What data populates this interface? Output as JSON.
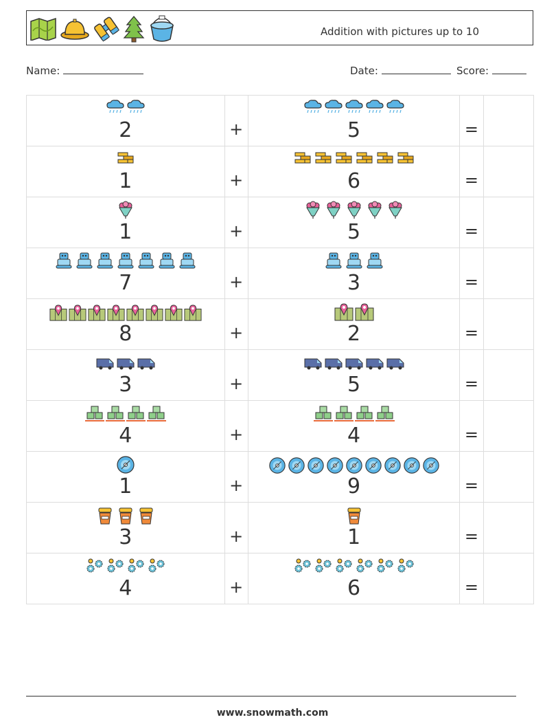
{
  "header": {
    "title": "Addition with pictures up to 10",
    "icons": [
      "map-icon",
      "pith-helmet-icon",
      "binoculars-icon",
      "pine-tree-icon",
      "bucket-icon"
    ]
  },
  "fields": {
    "name_label": "Name:",
    "date_label": "Date:",
    "score_label": "Score:"
  },
  "colors": {
    "text": "#333333",
    "grid": "#dddddd"
  },
  "symbols": {
    "plus": "+",
    "equals": "="
  },
  "problems": [
    {
      "a": 2,
      "b": 5,
      "icon": "rain-cloud-icon"
    },
    {
      "a": 1,
      "b": 6,
      "icon": "gold-bars-icon"
    },
    {
      "a": 1,
      "b": 5,
      "icon": "flower-bouquet-icon"
    },
    {
      "a": 7,
      "b": 3,
      "icon": "robot-icon"
    },
    {
      "a": 8,
      "b": 2,
      "icon": "map-pin-icon"
    },
    {
      "a": 3,
      "b": 5,
      "icon": "van-icon"
    },
    {
      "a": 4,
      "b": 4,
      "icon": "crates-icon"
    },
    {
      "a": 1,
      "b": 9,
      "icon": "disc-icon"
    },
    {
      "a": 3,
      "b": 1,
      "icon": "flower-pot-icon"
    },
    {
      "a": 4,
      "b": 6,
      "icon": "gears-icon"
    }
  ],
  "footer": {
    "website": "www.snowmath.com"
  }
}
